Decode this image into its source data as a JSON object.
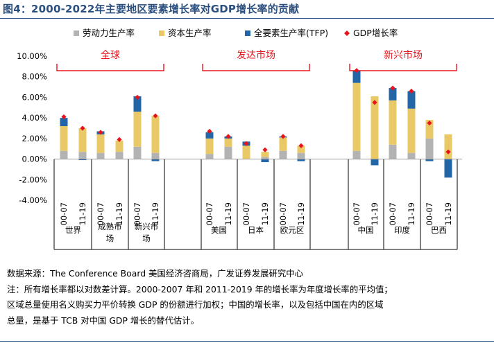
{
  "figure": {
    "title": "图4：2000-2022年主要地区要素增长率对GDP增长率的贡献"
  },
  "notes": {
    "source": "数据来源：The Conference Board 美国经济咨商局，广发证券发展研究中心",
    "note_1": "注：所有增长率都以对数差计算。2000-2007 年和 2011-2019 年的增长率为年度增长率的平均值；",
    "note_2": "区域总量使用名义购买力平价转换 GDP 的份额进行加权；中国的增长率，以及包括中国在内的区域",
    "note_3": "总量，是基于 TCB 对中国 GDP 增长的替代估计。"
  },
  "chart_data": {
    "type": "bar",
    "stacked": true,
    "title": "图4：2000-2022年主要地区要素增长率对GDP增长率的贡献",
    "ylabel": "",
    "ylim": [
      -0.04,
      0.1
    ],
    "yticks": [
      {
        "value": 0.1,
        "label": "10.00%"
      },
      {
        "value": 0.08,
        "label": "8.00%"
      },
      {
        "value": 0.06,
        "label": "6.00%"
      },
      {
        "value": 0.04,
        "label": "4.00%"
      },
      {
        "value": 0.02,
        "label": "2.00%"
      },
      {
        "value": 0.0,
        "label": "0.00%"
      },
      {
        "value": -0.02,
        "label": "-2.00%"
      },
      {
        "value": -0.04,
        "label": "-4.00%"
      }
    ],
    "categories": [
      "00-07",
      "11-19",
      "00-07",
      "11-19",
      "00-07",
      "11-19",
      "00-07",
      "11-19",
      "00-07",
      "11-19",
      "00-07",
      "11-19",
      "00-07",
      "11-19",
      "00-07",
      "11-19",
      "00-07",
      "11-19"
    ],
    "groups": [
      {
        "name": "世界",
        "lines": [
          "世界"
        ],
        "span": [
          0,
          1
        ]
      },
      {
        "name": "成熟市场",
        "lines": [
          "成熟市",
          "场"
        ],
        "span": [
          2,
          3
        ]
      },
      {
        "name": "新兴市场",
        "lines": [
          "新兴市",
          "场"
        ],
        "span": [
          4,
          5
        ]
      },
      {
        "name": "美国",
        "lines": [
          "美国"
        ],
        "span": [
          6,
          7
        ]
      },
      {
        "name": "日本",
        "lines": [
          "日本"
        ],
        "span": [
          8,
          9
        ]
      },
      {
        "name": "欧元区",
        "lines": [
          "欧元区"
        ],
        "span": [
          10,
          11
        ]
      },
      {
        "name": "中国",
        "lines": [
          "中国"
        ],
        "span": [
          12,
          13
        ]
      },
      {
        "name": "印度",
        "lines": [
          "印度"
        ],
        "span": [
          14,
          15
        ]
      },
      {
        "name": "巴西",
        "lines": [
          "巴西"
        ],
        "span": [
          16,
          17
        ]
      }
    ],
    "brackets": [
      {
        "label": "全球",
        "span": [
          0,
          5
        ]
      },
      {
        "label": "发达市场",
        "span": [
          6,
          11
        ]
      },
      {
        "label": "新兴市场",
        "span": [
          12,
          17
        ]
      }
    ],
    "series": [
      {
        "name": "劳动力生产率",
        "color": "#b3b3b3",
        "values": [
          0.008,
          0.007,
          0.006,
          0.007,
          0.012,
          0.006,
          0.005,
          0.012,
          0.0,
          0.002,
          0.008,
          0.006,
          0.008,
          0.0,
          0.014,
          0.006,
          0.02,
          0.0
        ]
      },
      {
        "name": "资本生产率",
        "color": "#e9c966",
        "values": [
          0.024,
          0.023,
          0.018,
          0.011,
          0.034,
          0.036,
          0.015,
          0.008,
          0.013,
          0.005,
          0.013,
          0.007,
          0.066,
          0.061,
          0.043,
          0.043,
          0.018,
          0.024
        ]
      },
      {
        "name": "全要素生产率(TFP)",
        "color": "#2266a8",
        "values": [
          0.008,
          -0.001,
          0.003,
          0.0,
          0.015,
          -0.002,
          0.006,
          0.002,
          0.004,
          -0.003,
          0.001,
          -0.002,
          0.012,
          -0.006,
          0.012,
          0.017,
          -0.002,
          -0.018
        ]
      }
    ],
    "gdp_growth": {
      "name": "GDP增长率",
      "color": "#e8141c",
      "values": [
        0.041,
        0.03,
        0.026,
        0.019,
        0.06,
        0.042,
        0.027,
        0.022,
        0.015,
        0.009,
        0.022,
        0.013,
        0.086,
        0.055,
        0.069,
        0.066,
        0.035,
        0.007
      ]
    }
  }
}
